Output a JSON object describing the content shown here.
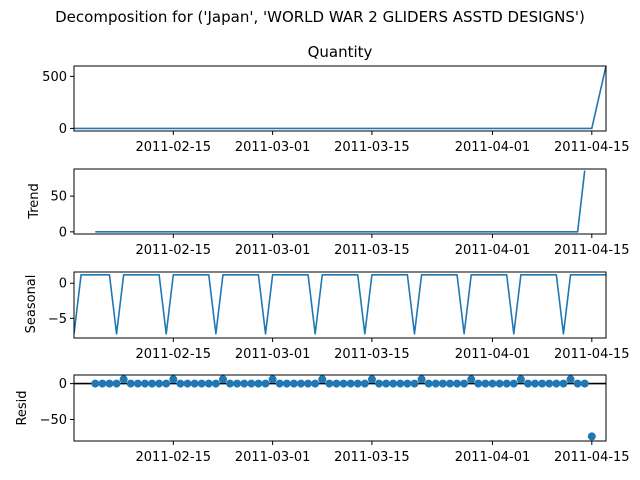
{
  "figure": {
    "suptitle": "Decomposition for ('Japan', 'WORLD WAR 2 GLIDERS ASSTD DESIGNS')"
  },
  "colors": {
    "line": "#1f77b4",
    "axis": "#000000",
    "background": "#ffffff"
  },
  "chart_data": [
    {
      "panel": "observed",
      "type": "line",
      "title": "Quantity",
      "ylabel": "",
      "ylim": [
        -25,
        600
      ],
      "yticks": [
        0,
        500
      ],
      "x_start": "2011-02-01",
      "x_end": "2011-04-17",
      "xticks": [
        "2011-02-15",
        "2011-03-01",
        "2011-03-15",
        "2011-04-01",
        "2011-04-15"
      ],
      "points": [
        [
          "2011-02-01",
          0
        ],
        [
          "2011-04-15",
          0
        ],
        [
          "2011-04-17",
          600
        ]
      ]
    },
    {
      "panel": "trend",
      "type": "line",
      "title": "",
      "ylabel": "Trend",
      "ylim": [
        -3,
        88
      ],
      "yticks": [
        0,
        50
      ],
      "x_start": "2011-02-01",
      "x_end": "2011-04-17",
      "xticks": [
        "2011-02-15",
        "2011-03-01",
        "2011-03-15",
        "2011-04-01",
        "2011-04-15"
      ],
      "points": [
        [
          "2011-02-04",
          0
        ],
        [
          "2011-04-13",
          0
        ],
        [
          "2011-04-14",
          85.7
        ]
      ]
    },
    {
      "panel": "seasonal",
      "type": "line",
      "title": "",
      "ylabel": "Seasonal",
      "ylim": [
        -7.8,
        1.6
      ],
      "yticks": [
        0,
        -5
      ],
      "x_start": "2011-02-01",
      "x_end": "2011-04-17",
      "xticks": [
        "2011-02-15",
        "2011-03-01",
        "2011-03-15",
        "2011-04-01",
        "2011-04-15"
      ],
      "period": 7,
      "first_dip": "2011-02-07",
      "pattern_high": 1.2,
      "pattern_low": -7.2,
      "first_value": -7.2
    },
    {
      "panel": "resid",
      "type": "scatter",
      "title": "",
      "ylabel": "Resid",
      "ylim": [
        -80,
        12
      ],
      "yticks": [
        0,
        -50
      ],
      "zero_line": true,
      "x_start": "2011-02-01",
      "x_end": "2011-04-17",
      "xticks": [
        "2011-02-15",
        "2011-03-01",
        "2011-03-15",
        "2011-04-01",
        "2011-04-15"
      ],
      "resid_start": "2011-02-04",
      "resid_end": "2011-04-14",
      "period": 7,
      "high_start": "2011-02-08",
      "high_value": 6,
      "normal_value": 0,
      "outlier": [
        "2011-04-15",
        -73.6
      ]
    }
  ]
}
